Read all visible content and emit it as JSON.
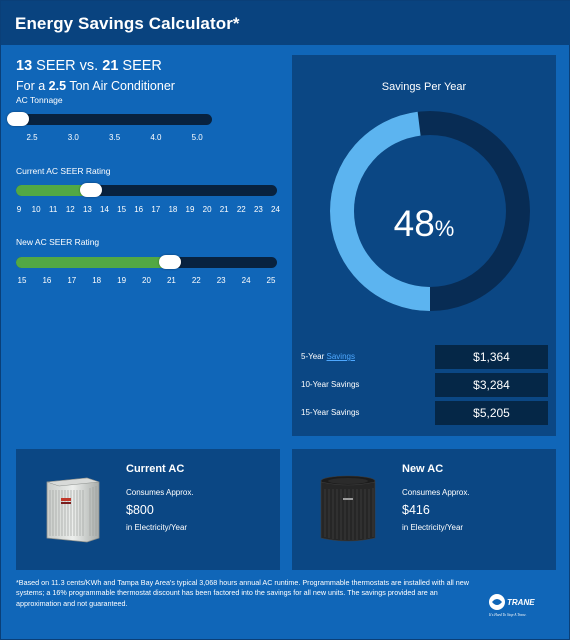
{
  "header": {
    "title": "Energy Savings Calculator*"
  },
  "comparison": {
    "current_seer": "13",
    "seer_unit_1": "SEER vs.",
    "new_seer": "21",
    "seer_unit_2": "SEER",
    "prefix": "For a",
    "tonnage": "2.5",
    "suffix": "Ton Air Conditioner"
  },
  "sliders": {
    "tonnage": {
      "label": "AC Tonnage",
      "ticks": [
        "2.5",
        "3.0",
        "3.5",
        "4.0",
        "5.0"
      ],
      "value": 2.5
    },
    "current_seer": {
      "label": "Current AC SEER Rating",
      "ticks": [
        "9",
        "10",
        "11",
        "12",
        "13",
        "14",
        "15",
        "16",
        "17",
        "18",
        "19",
        "20",
        "21",
        "22",
        "23",
        "24"
      ],
      "value": 13
    },
    "new_seer": {
      "label": "New AC SEER Rating",
      "ticks": [
        "15",
        "16",
        "17",
        "18",
        "19",
        "20",
        "21",
        "22",
        "23",
        "24",
        "25"
      ],
      "value": 21
    }
  },
  "savings": {
    "title": "Savings Per Year",
    "percent": "48",
    "percent_sign": "%",
    "fraction": 0.48,
    "colors": {
      "savings_arc": "#5cb4f0",
      "remaining_arc": "#082c54"
    },
    "rows": [
      {
        "label_prefix": "5-Year",
        "label_link": "Savings",
        "value": "$1,364"
      },
      {
        "label": "10-Year Savings",
        "value": "$3,284"
      },
      {
        "label": "15-Year Savings",
        "value": "$5,205"
      }
    ]
  },
  "current_ac": {
    "title": "Current AC",
    "consumes": "Consumes Approx.",
    "amount": "$800",
    "sub": "in Electricity/Year"
  },
  "new_ac": {
    "title": "New AC",
    "consumes": "Consumes Approx.",
    "amount": "$416",
    "sub": "in Electricity/Year"
  },
  "footnote": "*Based on 11.3 cents/KWh and Tampa Bay Area's typical 3,068 hours annual AC runtime. Programmable thermostats are installed with all new systems; a 16% programmable thermostat discount has been factored into the savings for all new units. The savings provided are an approximation and not guaranteed.",
  "logo": {
    "brand": "TRANE",
    "tagline": "It's Hard To Stop A Trane."
  }
}
